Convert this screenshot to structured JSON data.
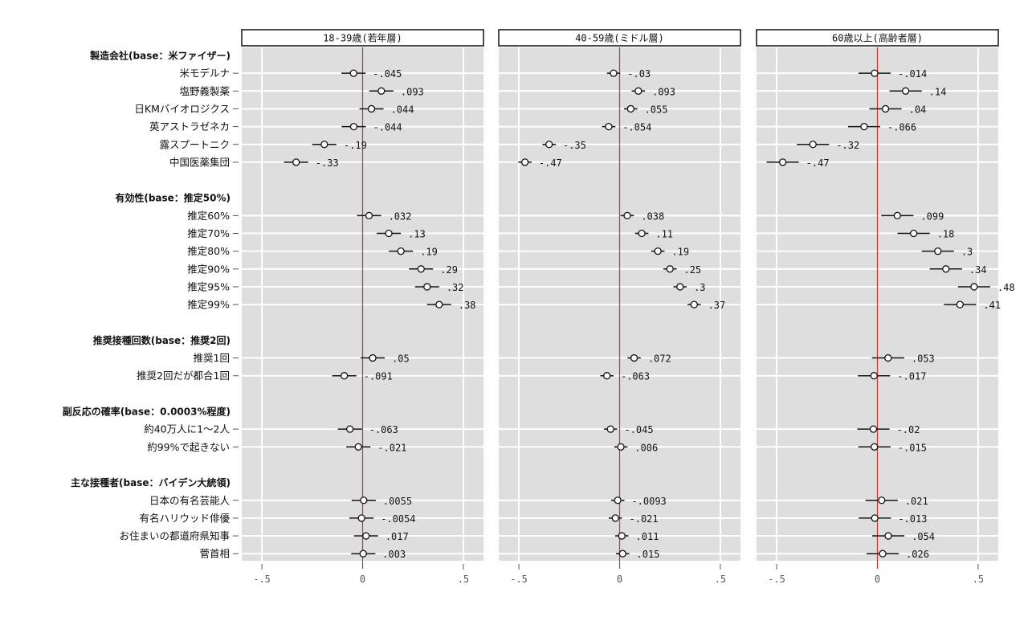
{
  "chart_data": {
    "type": "scatter",
    "subtype": "coefficient-plot",
    "title": "",
    "xlabel": "",
    "ylabel": "",
    "xlim": [
      -0.6,
      0.6
    ],
    "xticks": [
      -0.5,
      0,
      0.5
    ],
    "xtick_labels": [
      "-.5",
      "0",
      ".5"
    ],
    "reference_line": 0,
    "grid": true,
    "legend": "none",
    "panels": [
      {
        "title": "18-39歳(若年層)"
      },
      {
        "title": "40-59歳(ミドル層)"
      },
      {
        "title": "60歳以上(高齢者層)"
      }
    ],
    "groups": [
      {
        "label": "製造会社(base：米ファイザー)",
        "items": [
          {
            "label": "米モデルナ",
            "values": [
              -0.045,
              -0.03,
              -0.014
            ],
            "labels": [
              "-.045",
              "-.03",
              "-.014"
            ]
          },
          {
            "label": "塩野義製薬",
            "values": [
              0.093,
              0.093,
              0.14
            ],
            "labels": [
              ".093",
              ".093",
              ".14"
            ]
          },
          {
            "label": "日KMバイオロジクス",
            "values": [
              0.044,
              0.055,
              0.04
            ],
            "labels": [
              ".044",
              ".055",
              ".04"
            ]
          },
          {
            "label": "英アストラゼネカ",
            "values": [
              -0.044,
              -0.054,
              -0.066
            ],
            "labels": [
              "-.044",
              "-.054",
              "-.066"
            ]
          },
          {
            "label": "露スプートニク",
            "values": [
              -0.19,
              -0.35,
              -0.32
            ],
            "labels": [
              "-.19",
              "-.35",
              "-.32"
            ]
          },
          {
            "label": "中国医薬集団",
            "values": [
              -0.33,
              -0.47,
              -0.47
            ],
            "labels": [
              "-.33",
              "-.47",
              "-.47"
            ]
          }
        ]
      },
      {
        "label": "有効性(base：推定50%)",
        "items": [
          {
            "label": "推定60%",
            "values": [
              0.032,
              0.038,
              0.099
            ],
            "labels": [
              ".032",
              ".038",
              ".099"
            ]
          },
          {
            "label": "推定70%",
            "values": [
              0.13,
              0.11,
              0.18
            ],
            "labels": [
              ".13",
              ".11",
              ".18"
            ]
          },
          {
            "label": "推定80%",
            "values": [
              0.19,
              0.19,
              0.3
            ],
            "labels": [
              ".19",
              ".19",
              ".3"
            ]
          },
          {
            "label": "推定90%",
            "values": [
              0.29,
              0.25,
              0.34
            ],
            "labels": [
              ".29",
              ".25",
              ".34"
            ]
          },
          {
            "label": "推定95%",
            "values": [
              0.32,
              0.3,
              0.48
            ],
            "labels": [
              ".32",
              ".3",
              ".48"
            ]
          },
          {
            "label": "推定99%",
            "values": [
              0.38,
              0.37,
              0.41
            ],
            "labels": [
              ".38",
              ".37",
              ".41"
            ]
          }
        ]
      },
      {
        "label": "推奨接種回数(base：推奨2回)",
        "items": [
          {
            "label": "推奨1回",
            "values": [
              0.05,
              0.072,
              0.053
            ],
            "labels": [
              ".05",
              ".072",
              ".053"
            ]
          },
          {
            "label": "推奨2回だが都合1回",
            "values": [
              -0.091,
              -0.063,
              -0.017
            ],
            "labels": [
              "-.091",
              "-.063",
              "-.017"
            ]
          }
        ]
      },
      {
        "label": "副反応の確率(base：0.0003%程度)",
        "items": [
          {
            "label": "約40万人に1〜2人",
            "values": [
              -0.063,
              -0.045,
              -0.02
            ],
            "labels": [
              "-.063",
              "-.045",
              "-.02"
            ]
          },
          {
            "label": "約99%で起きない",
            "values": [
              -0.021,
              0.006,
              -0.015
            ],
            "labels": [
              "-.021",
              ".006",
              "-.015"
            ]
          }
        ]
      },
      {
        "label": "主な接種者(base：バイデン大統領)",
        "items": [
          {
            "label": "日本の有名芸能人",
            "values": [
              0.0055,
              -0.0093,
              0.021
            ],
            "labels": [
              ".0055",
              "-.0093",
              ".021"
            ]
          },
          {
            "label": "有名ハリウッド俳優",
            "values": [
              -0.0054,
              -0.021,
              -0.013
            ],
            "labels": [
              "-.0054",
              "-.021",
              "-.013"
            ]
          },
          {
            "label": "お住まいの都道府県知事",
            "values": [
              0.017,
              0.011,
              0.054
            ],
            "labels": [
              ".017",
              ".011",
              ".054"
            ]
          },
          {
            "label": "菅首相",
            "values": [
              0.003,
              0.015,
              0.026
            ],
            "labels": [
              ".003",
              ".015",
              ".026"
            ]
          }
        ]
      }
    ],
    "ci_halfwidth_by_panel": [
      0.06,
      0.033,
      0.08
    ],
    "colors": {
      "panel_bg": "#dedede",
      "grid": "#ffffff",
      "reference_line": "#c0392b",
      "marker_fill": "#ffffff",
      "marker_stroke": "#111111",
      "ci": "#111111"
    }
  }
}
